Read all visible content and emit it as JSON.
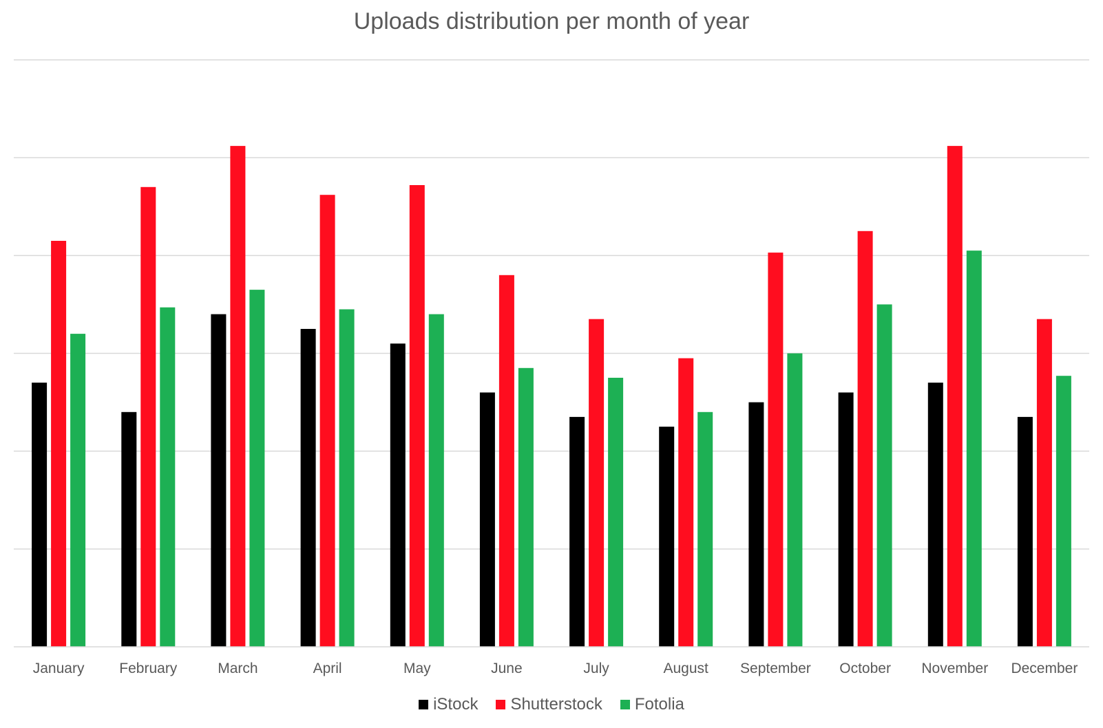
{
  "chart_data": {
    "type": "bar",
    "title": "Uploads distribution per month of year",
    "xlabel": "",
    "ylabel": "",
    "categories": [
      "January",
      "February",
      "March",
      "April",
      "May",
      "June",
      "July",
      "August",
      "September",
      "October",
      "November",
      "December"
    ],
    "series": [
      {
        "name": "iStock",
        "color": "#000000",
        "values": [
          2.7,
          2.4,
          3.4,
          3.25,
          3.1,
          2.6,
          2.35,
          2.25,
          2.5,
          2.6,
          2.7,
          2.35
        ]
      },
      {
        "name": "Shutterstock",
        "color": "#ff0d1f",
        "values": [
          4.15,
          4.7,
          5.12,
          4.62,
          4.72,
          3.8,
          3.35,
          2.95,
          4.03,
          4.25,
          5.12,
          3.35
        ]
      },
      {
        "name": "Fotolia",
        "color": "#1db054",
        "values": [
          3.2,
          3.47,
          3.65,
          3.45,
          3.4,
          2.85,
          2.75,
          2.4,
          3.0,
          3.5,
          4.05,
          2.77
        ]
      }
    ],
    "ylim": [
      0,
      6
    ],
    "y_axis_labels_shown": false,
    "grid": true,
    "legend": "bottom"
  }
}
